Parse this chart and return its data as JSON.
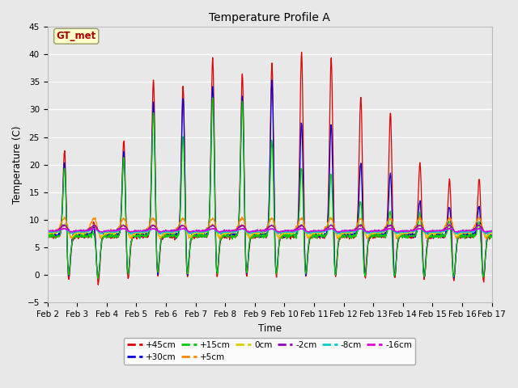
{
  "title": "Temperature Profile A",
  "xlabel": "Time",
  "ylabel": "Temperature (C)",
  "ylim": [
    -5,
    45
  ],
  "yticks": [
    -5,
    0,
    5,
    10,
    15,
    20,
    25,
    30,
    35,
    40,
    45
  ],
  "xlim": [
    0,
    15
  ],
  "xtick_labels": [
    "Feb 2",
    "Feb 3",
    "Feb 4",
    "Feb 5",
    "Feb 6",
    "Feb 7",
    "Feb 8",
    "Feb 9",
    "Feb 10",
    "Feb 11",
    "Feb 12",
    "Feb 13",
    "Feb 14",
    "Feb 15",
    "Feb 16",
    "Feb 17"
  ],
  "series_colors": {
    "+45cm": "#dd0000",
    "+30cm": "#0000dd",
    "+15cm": "#00cc00",
    "+5cm": "#ff8800",
    "0cm": "#ddcc00",
    "-2cm": "#9900bb",
    "-8cm": "#00cccc",
    "-16cm": "#dd00dd"
  },
  "legend_box_color": "#ffffff",
  "legend_box_edge": "#999999",
  "annotation_text": "GT_met",
  "annotation_color": "#aa0000",
  "annotation_bg": "#ffffcc",
  "annotation_edge": "#999966",
  "background_color": "#e8e8e8",
  "plot_bg_color": "#e8e8e8"
}
